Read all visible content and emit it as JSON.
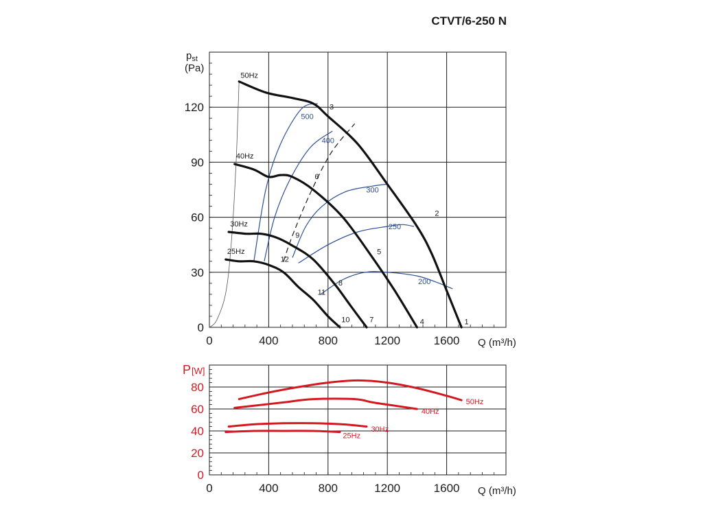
{
  "chart_data": [
    {
      "type": "line",
      "title": "CTVT/6-250 N",
      "ylabel": "p",
      "ylabel_sub": "st",
      "ylabel_unit": "(Pa)",
      "xlabel": "Q (m³/h)",
      "xlim": [
        0,
        2000
      ],
      "ylim": [
        0,
        150
      ],
      "xticks": [
        0,
        400,
        800,
        1200,
        1600
      ],
      "yticks": [
        0,
        30,
        60,
        90,
        120
      ],
      "grid": true,
      "pressure_curves": [
        {
          "name": "50Hz",
          "points": [
            [
              200,
              134
            ],
            [
              380,
              128
            ],
            [
              560,
              125
            ],
            [
              700,
              122
            ],
            [
              800,
              115
            ],
            [
              1000,
              100
            ],
            [
              1200,
              78
            ],
            [
              1400,
              55
            ],
            [
              1500,
              40
            ],
            [
              1600,
              20
            ],
            [
              1700,
              0
            ]
          ]
        },
        {
          "name": "40Hz",
          "points": [
            [
              170,
              89
            ],
            [
              300,
              86
            ],
            [
              400,
              82
            ],
            [
              480,
              83
            ],
            [
              560,
              82
            ],
            [
              700,
              75
            ],
            [
              900,
              60
            ],
            [
              1100,
              38
            ],
            [
              1250,
              20
            ],
            [
              1400,
              0
            ]
          ]
        },
        {
          "name": "30Hz",
          "points": [
            [
              130,
              52
            ],
            [
              250,
              51
            ],
            [
              350,
              51
            ],
            [
              450,
              49
            ],
            [
              550,
              45
            ],
            [
              700,
              37
            ],
            [
              850,
              23
            ],
            [
              950,
              12
            ],
            [
              1060,
              0
            ]
          ]
        },
        {
          "name": "25Hz",
          "points": [
            [
              110,
              37
            ],
            [
              200,
              36
            ],
            [
              300,
              36
            ],
            [
              400,
              34
            ],
            [
              500,
              30
            ],
            [
              600,
              22
            ],
            [
              700,
              15
            ],
            [
              800,
              6
            ],
            [
              880,
              0
            ]
          ]
        }
      ],
      "efficiency_curves": [
        {
          "label": "500",
          "points": [
            [
              300,
              36
            ],
            [
              380,
              75
            ],
            [
              480,
              100
            ],
            [
              620,
              119
            ],
            [
              730,
              122
            ]
          ]
        },
        {
          "label": "400",
          "points": [
            [
              370,
              36
            ],
            [
              440,
              60
            ],
            [
              540,
              80
            ],
            [
              680,
              98
            ],
            [
              830,
              107
            ]
          ]
        },
        {
          "label": "300",
          "points": [
            [
              560,
              38
            ],
            [
              650,
              55
            ],
            [
              760,
              66
            ],
            [
              920,
              74
            ],
            [
              1100,
              77
            ],
            [
              1200,
              78
            ]
          ]
        },
        {
          "label": "250",
          "points": [
            [
              600,
              35
            ],
            [
              800,
              45
            ],
            [
              1000,
              52
            ],
            [
              1200,
              55
            ],
            [
              1300,
              56
            ],
            [
              1380,
              55
            ]
          ]
        },
        {
          "label": "200",
          "points": [
            [
              750,
              18
            ],
            [
              900,
              26
            ],
            [
              1050,
              30
            ],
            [
              1200,
              30
            ],
            [
              1400,
              28
            ],
            [
              1550,
              24
            ],
            [
              1640,
              21
            ]
          ]
        }
      ],
      "system_curve": {
        "points": [
          [
            0,
            0
          ],
          [
            20,
            1
          ],
          [
            50,
            4
          ],
          [
            100,
            15
          ],
          [
            130,
            30
          ],
          [
            160,
            60
          ],
          [
            180,
            90
          ],
          [
            190,
            110
          ],
          [
            200,
            134
          ]
        ]
      },
      "dashed_line": {
        "points": [
          [
            500,
            36
          ],
          [
            560,
            50
          ],
          [
            680,
            73
          ],
          [
            820,
            95
          ],
          [
            980,
            111
          ]
        ]
      },
      "pressure_curve_labels": [
        {
          "text": "50Hz",
          "x": 210,
          "y": 136
        },
        {
          "text": "40Hz",
          "x": 180,
          "y": 92
        },
        {
          "text": "30Hz",
          "x": 140,
          "y": 55
        },
        {
          "text": "25Hz",
          "x": 120,
          "y": 40
        }
      ],
      "point_labels": [
        {
          "text": "1",
          "x": 1720,
          "y": 1
        },
        {
          "text": "2",
          "x": 1520,
          "y": 60
        },
        {
          "text": "3",
          "x": 810,
          "y": 118
        },
        {
          "text": "4",
          "x": 1420,
          "y": 1
        },
        {
          "text": "5",
          "x": 1130,
          "y": 39
        },
        {
          "text": "6",
          "x": 710,
          "y": 80
        },
        {
          "text": "7",
          "x": 1080,
          "y": 2
        },
        {
          "text": "8",
          "x": 870,
          "y": 22
        },
        {
          "text": "9",
          "x": 580,
          "y": 48
        },
        {
          "text": "10",
          "x": 890,
          "y": 2
        },
        {
          "text": "11",
          "x": 730,
          "y": 17
        },
        {
          "text": "12",
          "x": 480,
          "y": 35
        }
      ],
      "efficiency_label_positions": [
        {
          "text": "500",
          "x": 660,
          "y": 115
        },
        {
          "text": "400",
          "x": 800,
          "y": 102
        },
        {
          "text": "300",
          "x": 1100,
          "y": 75
        },
        {
          "text": "250",
          "x": 1250,
          "y": 55
        },
        {
          "text": "200",
          "x": 1450,
          "y": 25
        }
      ]
    },
    {
      "type": "line",
      "ylabel": "P",
      "ylabel_unit": "[W]",
      "xlabel": "Q (m³/h)",
      "xlim": [
        0,
        2000
      ],
      "ylim": [
        0,
        100
      ],
      "xticks": [
        0,
        400,
        800,
        1200,
        1600
      ],
      "yticks": [
        0,
        20,
        40,
        60,
        80
      ],
      "grid": true,
      "series": [
        {
          "name": "50Hz",
          "points": [
            [
              200,
              69
            ],
            [
              400,
              75
            ],
            [
              600,
              80
            ],
            [
              800,
              84
            ],
            [
              1000,
              86
            ],
            [
              1200,
              84
            ],
            [
              1400,
              79
            ],
            [
              1600,
              72
            ],
            [
              1700,
              68
            ]
          ]
        },
        {
          "name": "40Hz",
          "points": [
            [
              170,
              61
            ],
            [
              300,
              63
            ],
            [
              500,
              66
            ],
            [
              700,
              69
            ],
            [
              980,
              69
            ],
            [
              1100,
              66
            ],
            [
              1250,
              63
            ],
            [
              1400,
              60
            ]
          ]
        },
        {
          "name": "30Hz",
          "points": [
            [
              130,
              44
            ],
            [
              300,
              46
            ],
            [
              500,
              47
            ],
            [
              700,
              47
            ],
            [
              900,
              46
            ],
            [
              1060,
              44
            ]
          ]
        },
        {
          "name": "25Hz",
          "points": [
            [
              110,
              39
            ],
            [
              300,
              40
            ],
            [
              500,
              40
            ],
            [
              700,
              40
            ],
            [
              880,
              39
            ]
          ]
        }
      ],
      "series_labels": [
        {
          "text": "50Hz",
          "x": 1730,
          "y": 67
        },
        {
          "text": "40Hz",
          "x": 1430,
          "y": 58
        },
        {
          "text": "30Hz",
          "x": 1090,
          "y": 42
        },
        {
          "text": "25Hz",
          "x": 900,
          "y": 36
        }
      ]
    }
  ]
}
